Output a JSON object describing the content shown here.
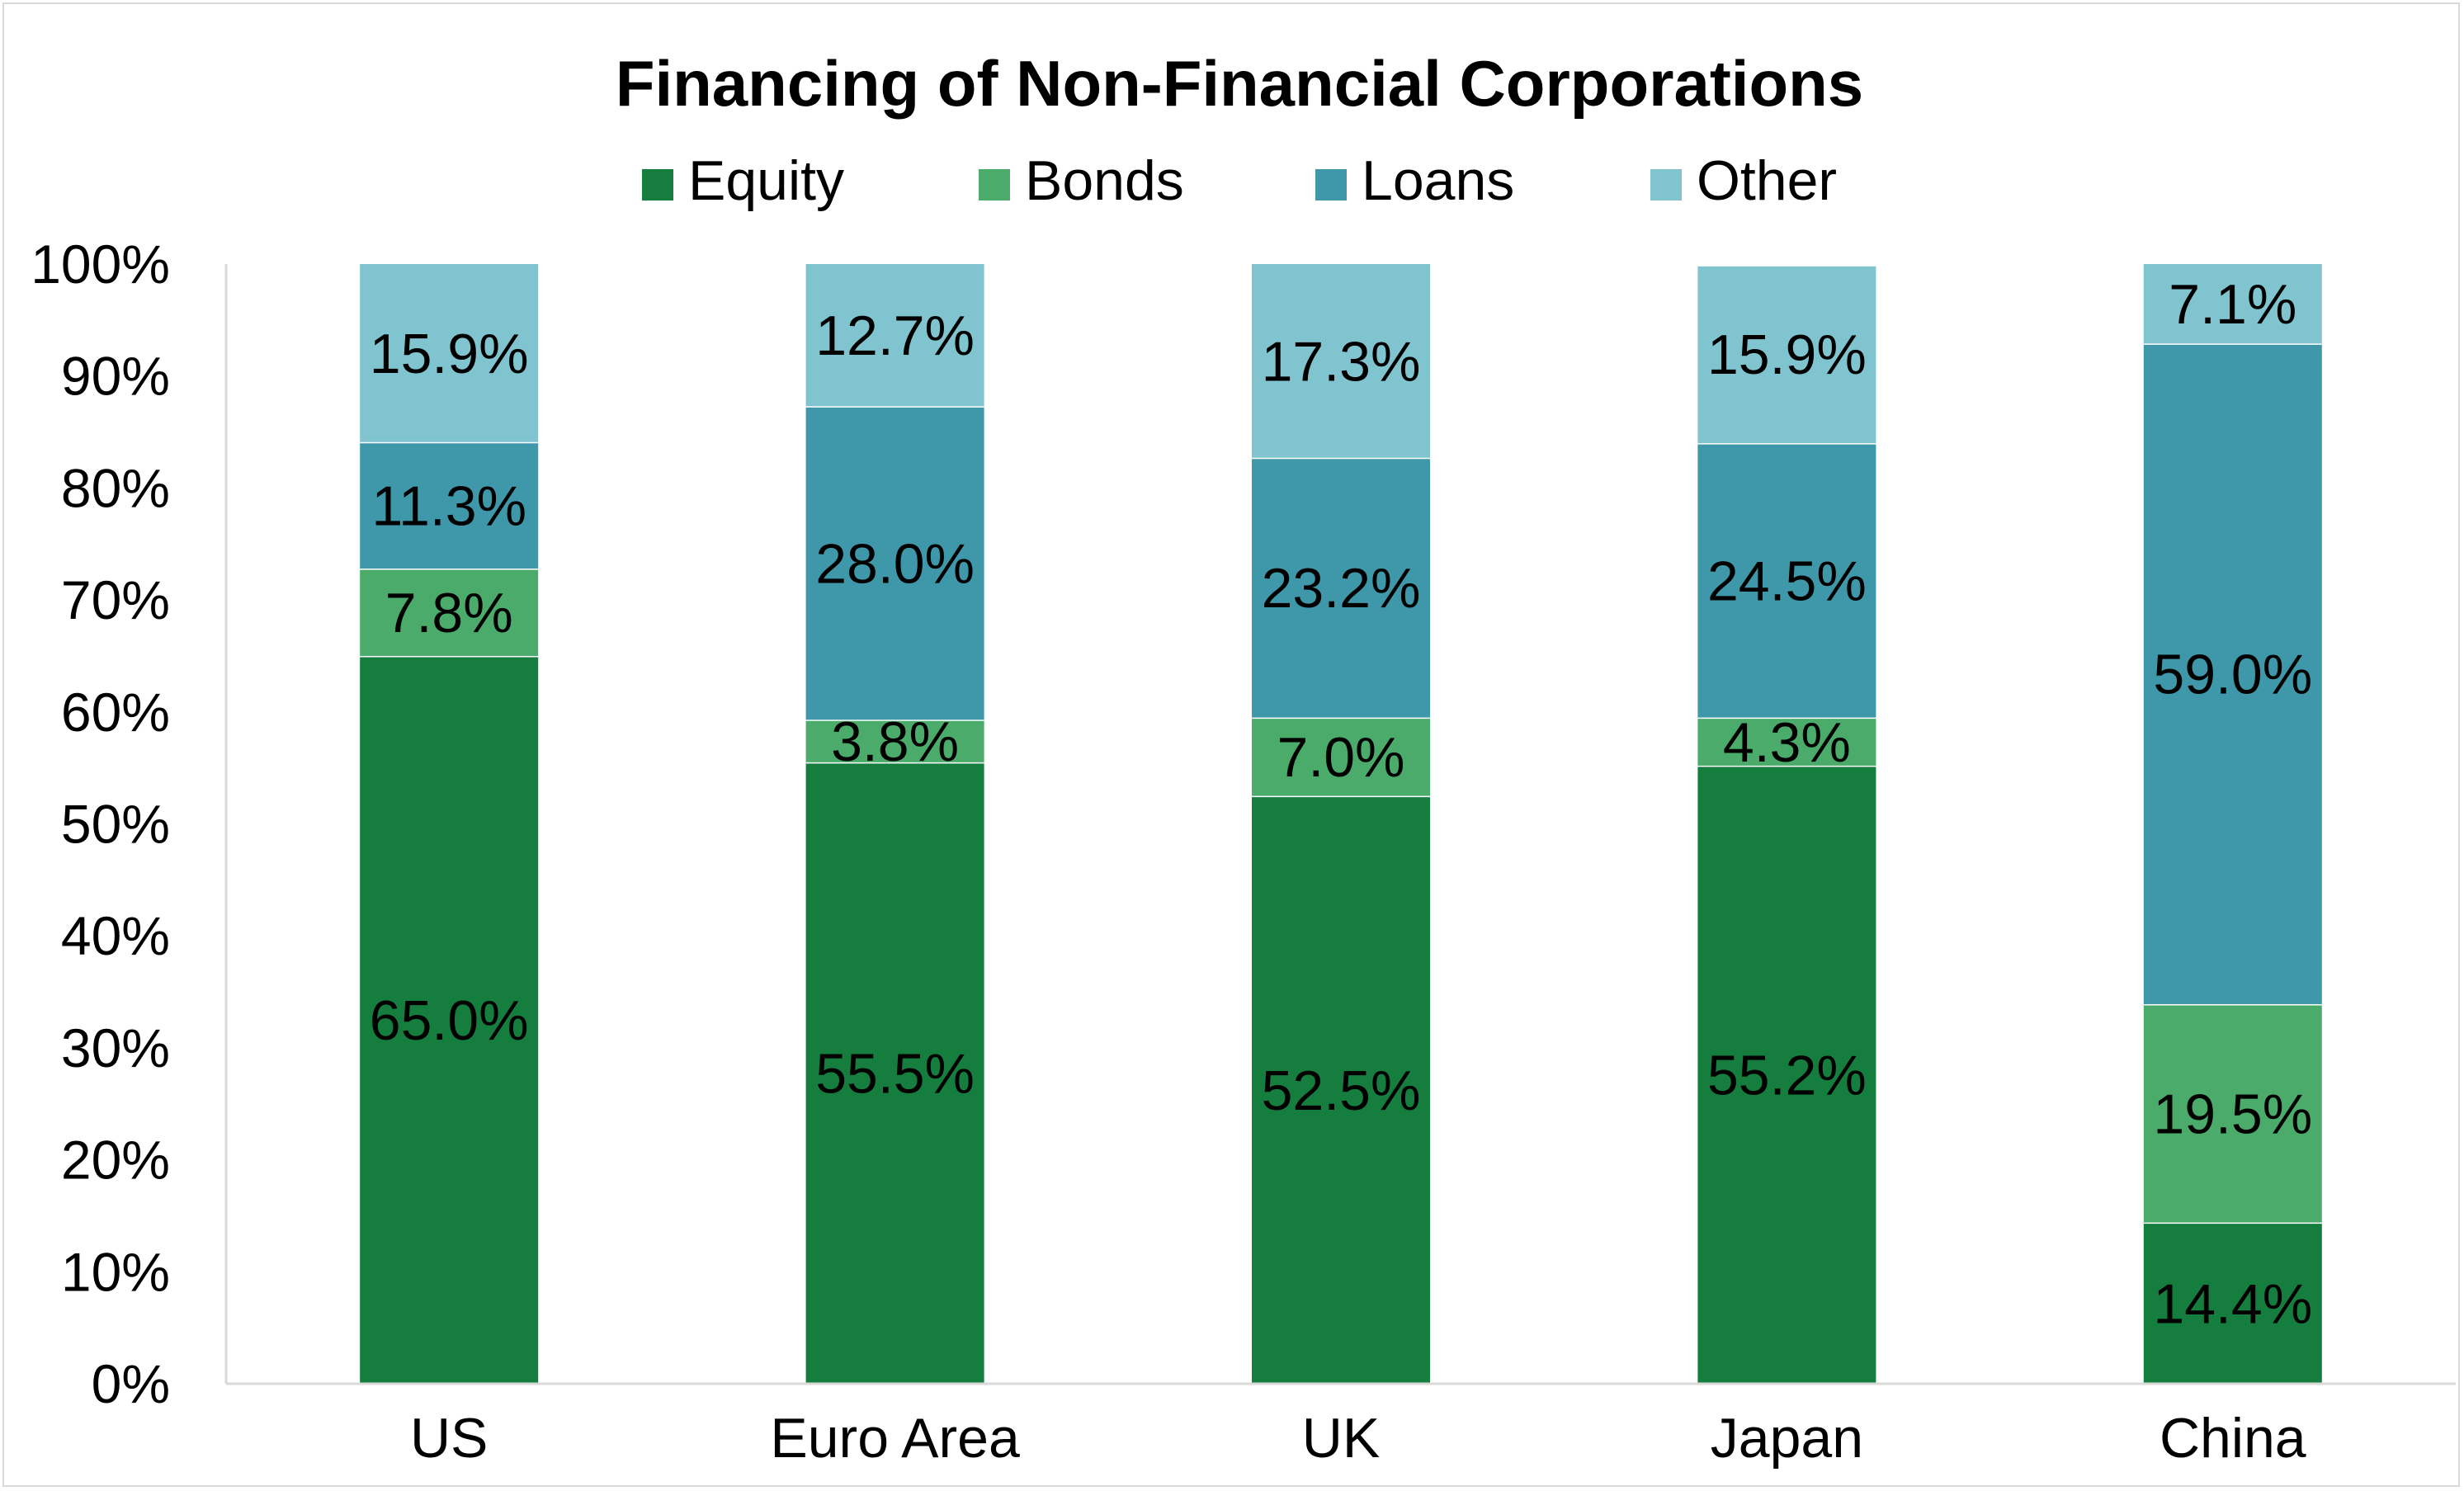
{
  "chart_data": {
    "type": "bar",
    "stacked": true,
    "title": "Financing of Non-Financial Corporations",
    "categories": [
      "US",
      "Euro Area",
      "UK",
      "Japan",
      "China"
    ],
    "series": [
      {
        "name": "Equity",
        "color": "#157d3d",
        "values": [
          65.0,
          55.5,
          52.5,
          55.2,
          14.4
        ],
        "labels": [
          "65.0%",
          "55.5%",
          "52.5%",
          "55.2%",
          "14.4%"
        ]
      },
      {
        "name": "Bonds",
        "color": "#4aab6b",
        "values": [
          7.8,
          3.8,
          7.0,
          4.3,
          19.5
        ],
        "labels": [
          "7.8%",
          "3.8%",
          "7.0%",
          "4.3%",
          "19.5%"
        ]
      },
      {
        "name": "Loans",
        "color": "#3f98aa",
        "values": [
          11.3,
          28.0,
          23.2,
          24.5,
          59.0
        ],
        "labels": [
          "11.3%",
          "28.0%",
          "23.2%",
          "24.5%",
          "59.0%"
        ]
      },
      {
        "name": "Other",
        "color": "#80c4cf",
        "values": [
          15.9,
          12.7,
          17.3,
          15.9,
          7.1
        ],
        "labels": [
          "15.9%",
          "12.7%",
          "17.3%",
          "15.9%",
          "7.1%"
        ]
      }
    ],
    "ylim": [
      0,
      100
    ],
    "yticks": [
      0,
      10,
      20,
      30,
      40,
      50,
      60,
      70,
      80,
      90,
      100
    ],
    "ytick_labels": [
      "0%",
      "10%",
      "20%",
      "30%",
      "40%",
      "50%",
      "60%",
      "70%",
      "80%",
      "90%",
      "100%"
    ],
    "legend_position": "top",
    "grid": false,
    "axis_color": "#d9d9d9",
    "text_color": "#000000"
  }
}
